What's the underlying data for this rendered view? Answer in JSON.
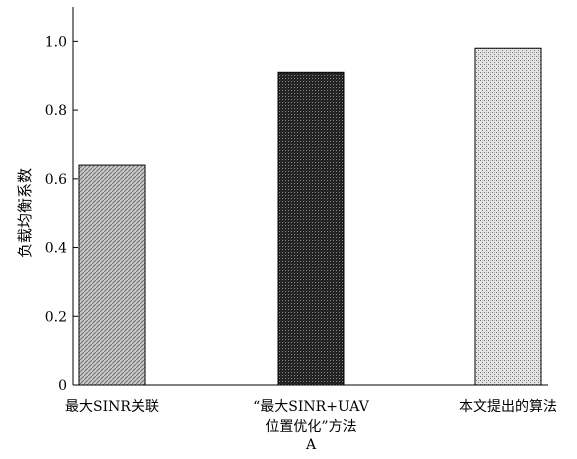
{
  "chart_data": {
    "type": "bar",
    "title": "",
    "xlabel": "A",
    "ylabel": "负载均衡系数",
    "categories": [
      [
        "最大SINR关联"
      ],
      [
        "“最大SINR+UAV",
        "位置优化”方法"
      ],
      [
        "本文提出的算法"
      ]
    ],
    "values": [
      0.64,
      0.91,
      0.98
    ],
    "ylim": [
      0,
      1.1
    ],
    "yticks": [
      {
        "value": 0,
        "label": "0"
      },
      {
        "value": 0.2,
        "label": "0.2"
      },
      {
        "value": 0.4,
        "label": "0.4"
      },
      {
        "value": 0.6,
        "label": "0.6"
      },
      {
        "value": 0.8,
        "label": "0.8"
      },
      {
        "value": 1.0,
        "label": "1.0"
      }
    ],
    "grid": false,
    "legend": "none",
    "bar_fills": [
      "hatch-light",
      "hatch-dark",
      "hatch-dotted"
    ]
  }
}
